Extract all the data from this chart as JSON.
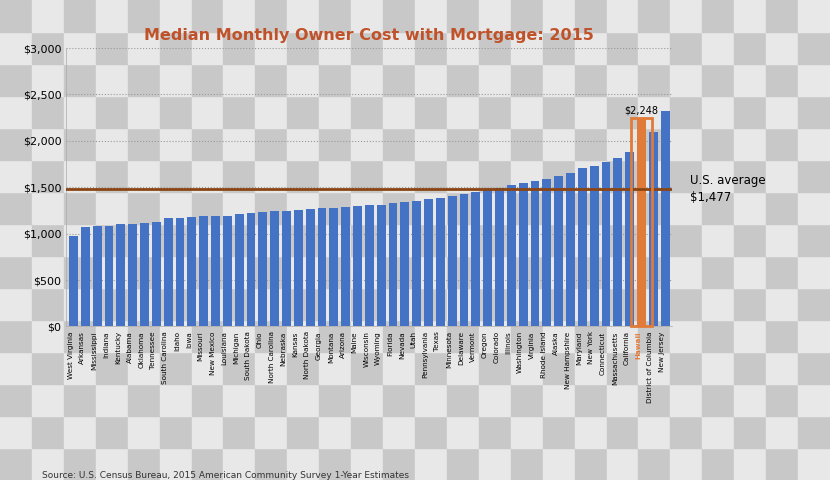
{
  "title": "Median Monthly Owner Cost with Mortgage: 2015",
  "source": "Source: U.S. Census Bureau, 2015 American Community Survey 1-Year Estimates",
  "us_average": 1477,
  "hawaii_value": 2248,
  "hawaii_label": "$2,248",
  "avg_label_line1": "U.S. average",
  "avg_label_line2": "$1,477",
  "states": [
    "West Virginia",
    "Arkansas",
    "Mississippi",
    "Indiana",
    "Kentucky",
    "Alabama",
    "Oklahoma",
    "Tennessee",
    "South Carolina",
    "Idaho",
    "Iowa",
    "Missouri",
    "New Mexico",
    "Louisiana",
    "Michigan",
    "South Dakota",
    "Ohio",
    "North Carolina",
    "Nebraska",
    "Kansas",
    "North Dakota",
    "Georgia",
    "Montana",
    "Arizona",
    "Maine",
    "Wisconsin",
    "Wyoming",
    "Florida",
    "Nevada",
    "Utah",
    "Pennsylvania",
    "Texas",
    "Minnesota",
    "Delaware",
    "Vermont",
    "Oregon",
    "Colorado",
    "Illinois",
    "Washington",
    "Virginia",
    "Rhode Island",
    "Alaska",
    "New Hampshire",
    "Maryland",
    "New York",
    "Connecticut",
    "Massachusetts",
    "California",
    "Hawaii",
    "District of Columbia",
    "New Jersey"
  ],
  "values": [
    975,
    1075,
    1080,
    1085,
    1100,
    1105,
    1115,
    1120,
    1165,
    1170,
    1175,
    1185,
    1190,
    1195,
    1210,
    1220,
    1230,
    1240,
    1245,
    1255,
    1265,
    1275,
    1280,
    1285,
    1295,
    1305,
    1310,
    1330,
    1340,
    1355,
    1370,
    1385,
    1410,
    1430,
    1450,
    1470,
    1490,
    1520,
    1540,
    1565,
    1590,
    1620,
    1650,
    1710,
    1730,
    1770,
    1810,
    1880,
    2248,
    2090,
    2320
  ],
  "bar_color": "#4472C4",
  "hawaii_color": "#E07B39",
  "avg_line_color": "#8B4513",
  "title_color": "#C0522A",
  "checker_dark": "#C8C8C8",
  "checker_light": "#E8E8E8",
  "grid_color": "#999999",
  "ylim": [
    0,
    3000
  ],
  "yticks": [
    0,
    500,
    1000,
    1500,
    2000,
    2500,
    3000
  ],
  "ytick_labels": [
    "$0",
    "$500",
    "$1,000",
    "$1,500",
    "$2,000",
    "$2,500",
    "$3,000"
  ]
}
